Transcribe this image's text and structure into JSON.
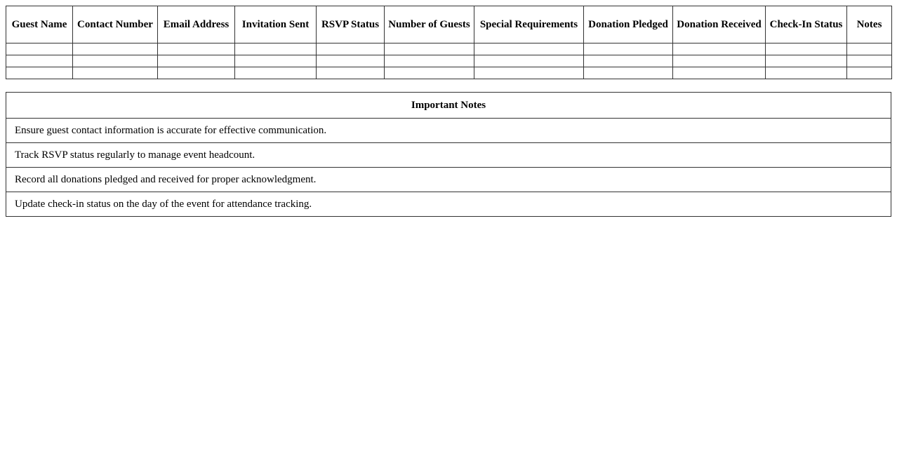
{
  "guest_table": {
    "headers": [
      "Guest Name",
      "Contact Number",
      "Email Address",
      "Invitation Sent",
      "RSVP Status",
      "Number of Guests",
      "Special Requirements",
      "Donation Pledged",
      "Donation Received",
      "Check-In Status",
      "Notes"
    ],
    "row_count": 3
  },
  "notes": {
    "title": "Important Notes",
    "items": [
      "Ensure guest contact information is accurate for effective communication.",
      "Track RSVP status regularly to manage event headcount.",
      "Record all donations pledged and received for proper acknowledgment.",
      "Update check-in status on the day of the event for attendance tracking."
    ]
  }
}
